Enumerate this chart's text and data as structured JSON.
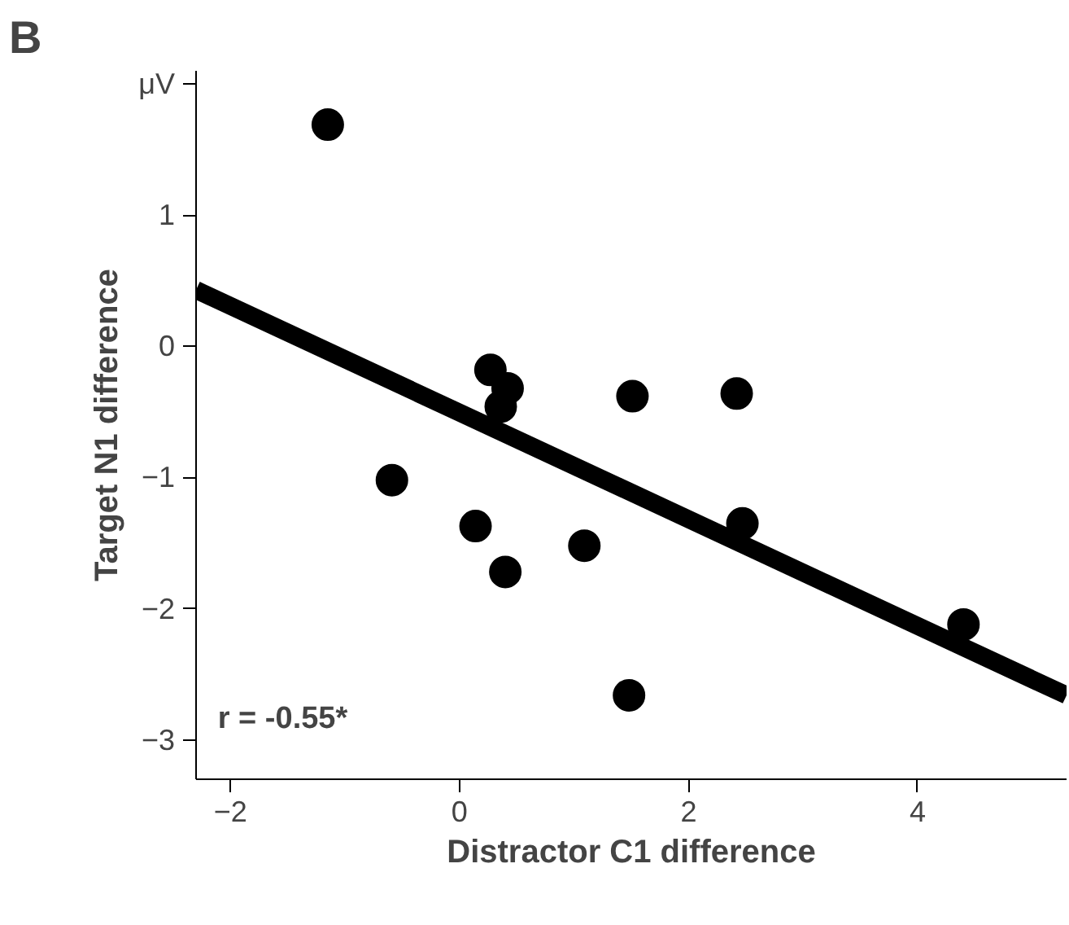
{
  "chart_data": {
    "type": "scatter",
    "title": "B",
    "xlabel": "Distractor C1 difference",
    "ylabel": "Target N1 difference",
    "annotations": [
      "r = -0.55*"
    ],
    "xlim": [
      -2.3,
      5.3
    ],
    "ylim": [
      -3.3,
      2.1
    ],
    "xticks": [
      -2,
      0,
      2,
      4
    ],
    "yticks": [
      -3,
      -2,
      -1,
      0,
      1,
      {
        "value": 2,
        "label": "μV"
      }
    ],
    "grid": false,
    "series": [
      {
        "color": "#000000",
        "marker": "circle",
        "x": [
          -1.15,
          -0.59,
          0.14,
          0.27,
          0.36,
          0.42,
          0.4,
          1.09,
          1.51,
          1.48,
          2.42,
          2.47,
          4.4
        ],
        "values": [
          1.69,
          -1.02,
          -1.37,
          -0.18,
          -0.46,
          -0.32,
          -1.72,
          -1.52,
          -0.38,
          -2.66,
          -0.36,
          -1.35,
          -2.12
        ]
      },
      {
        "type": "line",
        "color": "#000000",
        "line_style": "solid",
        "x": [
          -2.3,
          5.3
        ],
        "values": [
          0.43,
          -2.66
        ]
      }
    ]
  }
}
